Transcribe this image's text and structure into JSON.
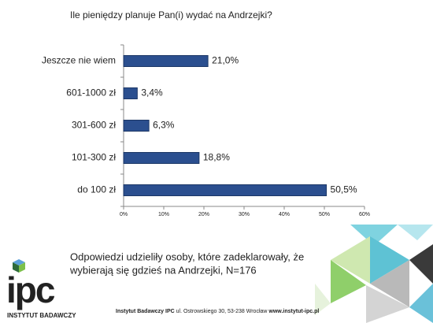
{
  "chart_data": {
    "type": "bar",
    "title": "Ile pieniędzy planuje Pan(i) wydać na Andrzejki?",
    "categories": [
      "Jeszcze nie wiem",
      "601-1000 zł",
      "301-600 zł",
      "101-300 zł",
      "do 100 zł"
    ],
    "values": [
      21.0,
      3.4,
      6.3,
      18.8,
      50.5
    ],
    "value_labels": [
      "21,0%",
      "3,4%",
      "6,3%",
      "18,8%",
      "50,5%"
    ],
    "color": "#2b4f8f",
    "xlim": [
      0,
      60
    ],
    "xticks": [
      {
        "value": 0,
        "label": "0%"
      },
      {
        "value": 10,
        "label": "10%"
      },
      {
        "value": 20,
        "label": "20%"
      },
      {
        "value": 30,
        "label": "30%"
      },
      {
        "value": 40,
        "label": "40%"
      },
      {
        "value": 50,
        "label": "50%"
      },
      {
        "value": 60,
        "label": "60%"
      }
    ]
  },
  "note": [
    "Odpowiedzi udzieliły osoby, które zadeklarowały, że",
    "wybierają się gdzieś na Andrzejki, N=176"
  ],
  "footer": {
    "name": "Instytut Badawczy IPC",
    "address": "ul. Ostrowskiego 30, 53-238 Wrocław",
    "url": "www.instytut-ipc.pl"
  },
  "logo": {
    "mark": "ipc",
    "subtitle": "INSTYTUT BADAWCZY"
  }
}
